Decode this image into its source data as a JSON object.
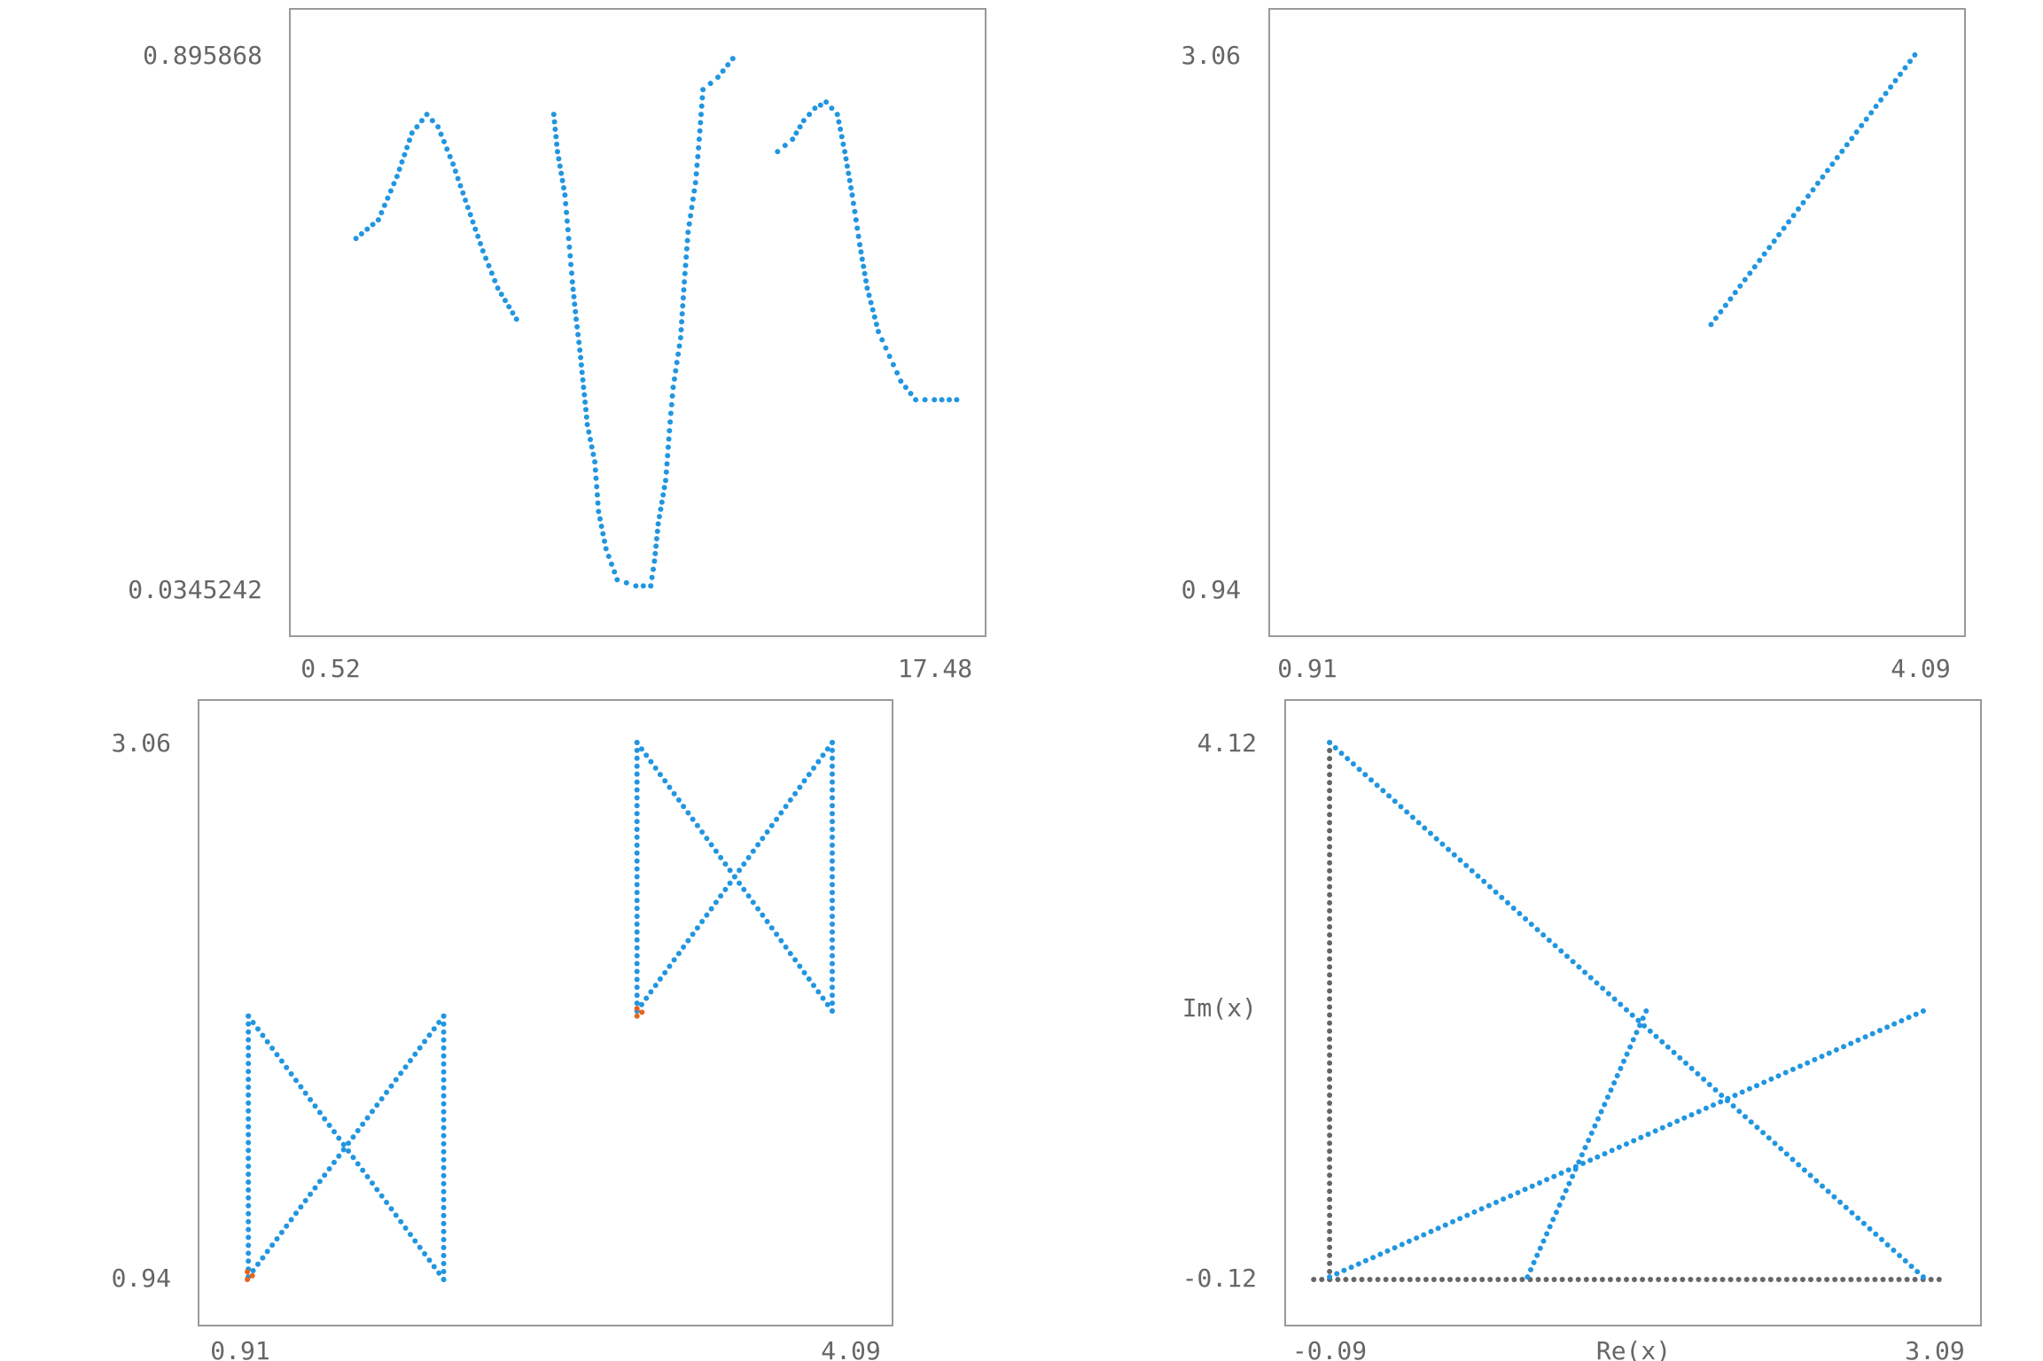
{
  "colors": {
    "point": "#2196e0",
    "highlight": "#e8631d",
    "axis_points": "#666666",
    "frame": "#999999",
    "label": "#666666"
  },
  "chart_data": [
    {
      "type": "scatter",
      "id": "top-left",
      "xlim": [
        0.52,
        17.48
      ],
      "ylim": [
        0.0345242,
        0.895868
      ],
      "x_ticks": [
        "0.52",
        "17.48"
      ],
      "y_ticks": [
        "0.895868",
        "0.0345242"
      ],
      "xlabel": "",
      "ylabel": "",
      "series": [
        {
          "color": "point",
          "segments": [
            {
              "points": [
                [
                  1.2,
                  0.6
                ],
                [
                  1.8,
                  0.63
                ],
                [
                  2.3,
                  0.7
                ],
                [
                  2.7,
                  0.77
                ],
                [
                  3.1,
                  0.8
                ],
                [
                  3.4,
                  0.78
                ],
                [
                  3.8,
                  0.72
                ],
                [
                  4.2,
                  0.65
                ],
                [
                  4.6,
                  0.58
                ],
                [
                  5.0,
                  0.52
                ],
                [
                  5.5,
                  0.47
                ]
              ]
            },
            {
              "points": [
                [
                  6.5,
                  0.8
                ],
                [
                  6.6,
                  0.74
                ],
                [
                  6.8,
                  0.67
                ],
                [
                  6.9,
                  0.6
                ],
                [
                  7.0,
                  0.53
                ],
                [
                  7.1,
                  0.47
                ],
                [
                  7.2,
                  0.42
                ],
                [
                  7.3,
                  0.36
                ],
                [
                  7.4,
                  0.3
                ],
                [
                  7.6,
                  0.24
                ],
                [
                  7.7,
                  0.16
                ],
                [
                  7.9,
                  0.1
                ],
                [
                  8.2,
                  0.05
                ],
                [
                  8.7,
                  0.04
                ],
                [
                  9.1,
                  0.04
                ]
              ]
            },
            {
              "points": [
                [
                  9.1,
                  0.04
                ],
                [
                  9.2,
                  0.08
                ],
                [
                  9.3,
                  0.14
                ],
                [
                  9.5,
                  0.21
                ],
                [
                  9.6,
                  0.29
                ],
                [
                  9.7,
                  0.36
                ],
                [
                  9.9,
                  0.44
                ],
                [
                  10.0,
                  0.53
                ],
                [
                  10.1,
                  0.61
                ],
                [
                  10.3,
                  0.69
                ],
                [
                  10.4,
                  0.76
                ],
                [
                  10.5,
                  0.84
                ],
                [
                  10.9,
                  0.86
                ],
                [
                  11.3,
                  0.89
                ]
              ]
            },
            {
              "points": [
                [
                  12.5,
                  0.74
                ],
                [
                  12.9,
                  0.76
                ],
                [
                  13.2,
                  0.79
                ],
                [
                  13.5,
                  0.81
                ],
                [
                  13.8,
                  0.82
                ],
                [
                  14.1,
                  0.8
                ],
                [
                  14.3,
                  0.74
                ],
                [
                  14.5,
                  0.67
                ],
                [
                  14.7,
                  0.59
                ],
                [
                  14.9,
                  0.52
                ],
                [
                  15.2,
                  0.45
                ],
                [
                  15.5,
                  0.41
                ],
                [
                  15.8,
                  0.37
                ],
                [
                  16.2,
                  0.34
                ],
                [
                  16.7,
                  0.34
                ],
                [
                  17.3,
                  0.34
                ]
              ]
            }
          ]
        }
      ]
    },
    {
      "type": "scatter",
      "id": "top-right",
      "xlim": [
        0.91,
        4.09
      ],
      "ylim": [
        0.94,
        3.06
      ],
      "x_ticks": [
        "0.91",
        "4.09"
      ],
      "y_ticks": [
        "3.06",
        "0.94"
      ],
      "xlabel": "",
      "ylabel": "",
      "series": [
        {
          "color": "point",
          "segments": [
            {
              "points": [
                [
                  2.95,
                  1.99
                ],
                [
                  3.98,
                  3.06
                ]
              ]
            }
          ]
        }
      ]
    },
    {
      "type": "scatter",
      "id": "bottom-left",
      "xlim": [
        0.91,
        4.09
      ],
      "ylim": [
        0.94,
        3.06
      ],
      "x_ticks": [
        "0.91",
        "4.09"
      ],
      "y_ticks": [
        "3.06",
        "0.94"
      ],
      "xlabel": "",
      "ylabel": "",
      "series": [
        {
          "color": "point",
          "segments": [
            {
              "points": [
                [
                  1.0,
                  0.95
                ],
                [
                  1.0,
                  1.98
                ]
              ]
            },
            {
              "points": [
                [
                  1.0,
                  1.98
                ],
                [
                  1.98,
                  0.94
                ]
              ]
            },
            {
              "points": [
                [
                  1.0,
                  0.95
                ],
                [
                  1.98,
                  1.98
                ]
              ]
            },
            {
              "points": [
                [
                  1.98,
                  0.94
                ],
                [
                  1.98,
                  1.98
                ]
              ]
            },
            {
              "points": [
                [
                  2.95,
                  2.0
                ],
                [
                  2.95,
                  3.06
                ]
              ]
            },
            {
              "points": [
                [
                  2.95,
                  3.06
                ],
                [
                  3.93,
                  2.0
                ]
              ]
            },
            {
              "points": [
                [
                  2.95,
                  2.0
                ],
                [
                  3.93,
                  3.06
                ]
              ]
            },
            {
              "points": [
                [
                  3.93,
                  2.0
                ],
                [
                  3.93,
                  3.06
                ]
              ]
            }
          ]
        },
        {
          "color": "highlight",
          "segments": [
            {
              "points": [
                [
                  0.995,
                  0.94
                ],
                [
                  0.995,
                  0.97
                ],
                [
                  1.02,
                  0.955
                ]
              ]
            },
            {
              "points": [
                [
                  2.95,
                  1.98
                ],
                [
                  2.95,
                  2.01
                ],
                [
                  2.975,
                  1.995
                ]
              ]
            }
          ]
        }
      ]
    },
    {
      "type": "scatter",
      "id": "bottom-right",
      "xlim": [
        -0.09,
        3.09
      ],
      "ylim": [
        -0.12,
        4.12
      ],
      "x_ticks": [
        "-0.09",
        "3.09"
      ],
      "y_ticks": [
        "4.12",
        "-0.12"
      ],
      "xlabel": "Re(x)",
      "ylabel": "Im(x)",
      "series": [
        {
          "color": "axis_points",
          "segments": [
            {
              "points": [
                [
                  -0.08,
                  -0.12
                ],
                [
                  3.08,
                  -0.12
                ]
              ]
            },
            {
              "points": [
                [
                  0.0,
                  -0.12
                ],
                [
                  0.0,
                  4.12
                ]
              ]
            }
          ]
        },
        {
          "color": "point",
          "segments": [
            {
              "points": [
                [
                  0.0,
                  4.12
                ],
                [
                  3.0,
                  -0.1
                ]
              ]
            },
            {
              "points": [
                [
                  0.0,
                  -0.1
                ],
                [
                  3.0,
                  2.0
                ]
              ]
            },
            {
              "points": [
                [
                  1.0,
                  -0.1
                ],
                [
                  1.6,
                  2.0
                ]
              ]
            }
          ]
        }
      ]
    }
  ]
}
